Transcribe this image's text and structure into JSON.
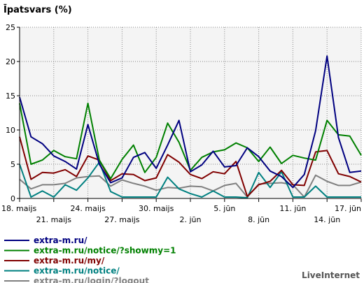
{
  "chart_data": {
    "type": "line",
    "title": "Īpatsvars (%)",
    "ylim": [
      0,
      25
    ],
    "yticks": [
      "0",
      "5",
      "10",
      "15",
      "20",
      "25"
    ],
    "grid": true,
    "x": [
      "18. maijs",
      "19",
      "20",
      "21. maijs",
      "22",
      "23",
      "24. maijs",
      "25",
      "26",
      "27. maijs",
      "28",
      "29",
      "30. maijs",
      "31",
      "1",
      "2. jūn",
      "3",
      "4",
      "5. jūn",
      "6",
      "7",
      "8. jūn",
      "9",
      "10",
      "11. jūn",
      "12",
      "13",
      "14. jūn",
      "15",
      "16",
      "17. jūn"
    ],
    "xticks_row1": [
      {
        "i": 0,
        "label": "18. maijs"
      },
      {
        "i": 6,
        "label": "24. maijs"
      },
      {
        "i": 12,
        "label": "30. maijs"
      },
      {
        "i": 18,
        "label": "5. jūn"
      },
      {
        "i": 24,
        "label": "11. jūn"
      },
      {
        "i": 30,
        "label": "17. jūn"
      }
    ],
    "xticks_row2": [
      {
        "i": 3,
        "label": "21. maijs"
      },
      {
        "i": 9,
        "label": "27. maijs"
      },
      {
        "i": 15,
        "label": "2. jūn"
      },
      {
        "i": 21,
        "label": "8. jūn"
      },
      {
        "i": 27,
        "label": "14. jūn"
      }
    ],
    "series": [
      {
        "name": "extra-m.ru/",
        "color": "#000080",
        "values": [
          14.8,
          9.0,
          8.0,
          6.2,
          5.4,
          4.3,
          10.8,
          5.0,
          2.3,
          3.0,
          6.0,
          6.7,
          4.4,
          7.8,
          11.4,
          3.9,
          4.9,
          6.9,
          4.6,
          4.8,
          7.4,
          6.1,
          4.0,
          3.2,
          1.6,
          3.5,
          9.9,
          20.8,
          8.9,
          3.8,
          4.0
        ]
      },
      {
        "name": "extra-m.ru/notice/?showmy=1",
        "color": "#008000",
        "values": [
          13.9,
          5.0,
          5.6,
          7.0,
          6.1,
          5.8,
          13.9,
          5.6,
          2.9,
          5.7,
          7.8,
          3.8,
          6.0,
          11.0,
          8.2,
          4.1,
          6.0,
          6.8,
          7.1,
          8.1,
          7.4,
          5.4,
          7.5,
          5.1,
          6.3,
          5.9,
          5.6,
          11.4,
          9.3,
          9.1,
          6.3
        ]
      },
      {
        "name": "extra-m.ru/my/",
        "color": "#800000",
        "values": [
          9.0,
          2.8,
          3.8,
          3.7,
          4.2,
          3.2,
          6.2,
          5.6,
          2.6,
          3.6,
          3.5,
          2.6,
          3.0,
          6.4,
          5.3,
          3.5,
          2.9,
          3.9,
          3.6,
          5.4,
          0.3,
          2.0,
          2.5,
          4.1,
          2.0,
          1.9,
          6.8,
          7.0,
          3.6,
          3.2,
          2.4
        ]
      },
      {
        "name": "extra-m.ru/notice/",
        "color": "#008080",
        "values": [
          5.0,
          0.2,
          1.1,
          0.2,
          2.0,
          1.2,
          3.0,
          5.3,
          1.0,
          0.2,
          0.2,
          0.2,
          0.2,
          3.1,
          1.4,
          0.7,
          0.2,
          1.1,
          0.2,
          0.2,
          0.1,
          3.8,
          1.6,
          3.9,
          0.2,
          0.2,
          1.8,
          0.2,
          0.2,
          0.2,
          0.2
        ]
      },
      {
        "name": "extra-m.ru/login/?logout",
        "color": "#808080",
        "values": [
          2.8,
          1.4,
          2.0,
          2.0,
          2.2,
          3.0,
          3.2,
          3.3,
          1.8,
          2.7,
          2.2,
          1.8,
          1.2,
          1.6,
          1.5,
          1.8,
          1.7,
          1.1,
          1.9,
          2.2,
          0.2,
          2.1,
          2.2,
          2.3,
          2.0,
          0.2,
          3.4,
          2.5,
          1.9,
          1.9,
          2.4
        ]
      }
    ]
  },
  "brand": "LiveInternet"
}
